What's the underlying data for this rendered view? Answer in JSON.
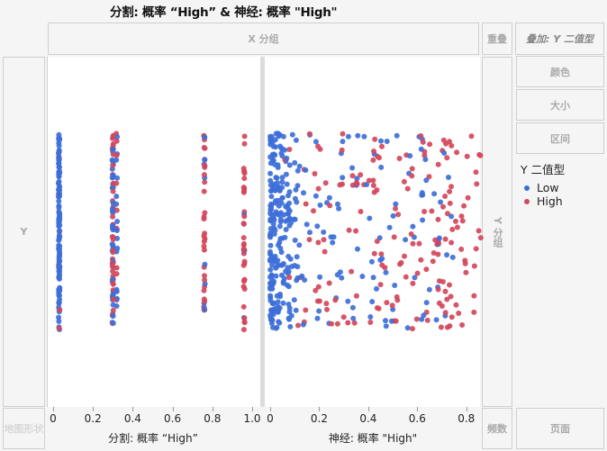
{
  "title": "分割: 概率 “High” & 神经: 概率 \"High\"",
  "zones": {
    "x_group": "X 分组",
    "overlap": "重叠",
    "overlay": "叠加: Y 二值型",
    "y": "Y",
    "y_group": "Y 分组",
    "color": "颜色",
    "size": "大小",
    "interval": "区间",
    "map_shape": "地图形状",
    "freq": "频数",
    "page": "页面"
  },
  "legend": {
    "title": "Y 二值型",
    "items": [
      {
        "label": "Low",
        "color": "#3d6fd9"
      },
      {
        "label": "High",
        "color": "#d4475a"
      }
    ]
  },
  "colors": {
    "low": "#3d6fd9",
    "high": "#d4475a"
  },
  "chart_data": [
    {
      "type": "scatter",
      "title": "分割: 概率 “High”",
      "xlabel": "分割: 概率 “High”",
      "ylabel": "Y",
      "xlim": [
        0,
        1.0
      ],
      "x_ticks": [
        "0",
        "0.2",
        "0.4",
        "0.6",
        "0.8",
        "1.0"
      ],
      "series": [
        {
          "name": "Low",
          "clusters": [
            {
              "x": 0.03,
              "count": 120
            },
            {
              "x": 0.3,
              "count": 45
            },
            {
              "x": 0.32,
              "count": 15
            },
            {
              "x": 0.76,
              "count": 9
            },
            {
              "x": 0.96,
              "count": 3
            }
          ]
        },
        {
          "name": "High",
          "clusters": [
            {
              "x": 0.03,
              "count": 6
            },
            {
              "x": 0.3,
              "count": 35
            },
            {
              "x": 0.32,
              "count": 10
            },
            {
              "x": 0.76,
              "count": 30
            },
            {
              "x": 0.96,
              "count": 35
            }
          ]
        }
      ],
      "note": "Y jittered (random) positions; points cluster at discrete predicted probabilities"
    },
    {
      "type": "scatter",
      "title": "神经: 概率 \"High\"",
      "xlabel": "神经: 概率 \"High\"",
      "ylabel": "Y",
      "xlim": [
        0,
        0.9
      ],
      "x_ticks": [
        "0",
        "0.2",
        "0.4",
        "0.6",
        "0.8"
      ],
      "series": [
        {
          "name": "Low",
          "x_range": [
            0.0,
            0.75
          ],
          "count": 330,
          "note": "dense near 0-0.1"
        },
        {
          "name": "High",
          "x_range": [
            0.02,
            0.86
          ],
          "count": 170,
          "note": "mostly 0.3-0.86"
        }
      ]
    }
  ]
}
